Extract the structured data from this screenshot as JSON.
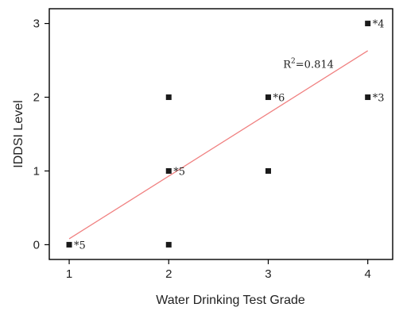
{
  "chart_data": {
    "type": "scatter",
    "xlabel": "Water Drinking Test Grade",
    "ylabel": "IDDSI Level",
    "xlim": [
      0.8,
      4.25
    ],
    "ylim": [
      -0.2,
      3.2
    ],
    "x_ticks": [
      1,
      2,
      3,
      4
    ],
    "y_ticks": [
      0,
      1,
      2,
      3
    ],
    "grid": false,
    "legend": "none",
    "points": [
      {
        "x": 1,
        "y": 0,
        "label": "*5"
      },
      {
        "x": 2,
        "y": 0,
        "label": ""
      },
      {
        "x": 2,
        "y": 1,
        "label": "*5"
      },
      {
        "x": 2,
        "y": 2,
        "label": ""
      },
      {
        "x": 3,
        "y": 1,
        "label": ""
      },
      {
        "x": 3,
        "y": 2,
        "label": "*6"
      },
      {
        "x": 4,
        "y": 2,
        "label": "*3"
      },
      {
        "x": 4,
        "y": 3,
        "label": "*4"
      }
    ],
    "trendline": {
      "x": [
        1,
        4
      ],
      "y": [
        0.08,
        2.63
      ],
      "color": "#f08080"
    },
    "r2_label": {
      "base": "R",
      "sup": "2",
      "value": "=0.814",
      "anchor_x": 3.15,
      "anchor_y": 2.4
    },
    "marker_color": "#1a1a1a",
    "axis_color": "#000000"
  }
}
